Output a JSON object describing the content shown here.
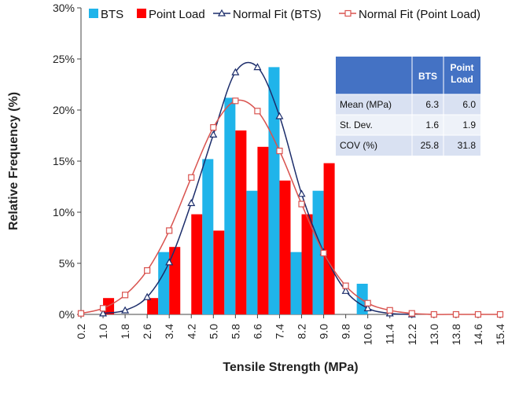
{
  "chart_data": {
    "type": "bar",
    "title": "",
    "xlabel": "Tensile Strength (MPa)",
    "ylabel": "Relative Frequency (%)",
    "ylim": [
      0,
      30
    ],
    "y_ticks": [
      "0%",
      "5%",
      "10%",
      "15%",
      "20%",
      "25%",
      "30%"
    ],
    "categories": [
      "0.2",
      "1.0",
      "1.8",
      "2.6",
      "3.4",
      "4.2",
      "5.0",
      "5.8",
      "6.6",
      "7.4",
      "8.2",
      "9.0",
      "9.8",
      "10.6",
      "11.4",
      "12.2",
      "13.0",
      "13.8",
      "14.6",
      "15.4"
    ],
    "grid": false,
    "legend_position": "top",
    "series": [
      {
        "name": "BTS",
        "type": "bar",
        "color": "#1fb4ea",
        "values": [
          0,
          0,
          0,
          0,
          6.1,
          0,
          15.2,
          21.2,
          12.1,
          24.2,
          6.1,
          12.1,
          0,
          3.0,
          0,
          0,
          0,
          0,
          0,
          0
        ]
      },
      {
        "name": "Point Load",
        "type": "bar",
        "color": "#ff0000",
        "values": [
          0,
          1.6,
          0,
          1.6,
          6.6,
          9.8,
          8.2,
          18.0,
          16.4,
          13.1,
          9.8,
          14.8,
          0,
          0,
          0,
          0,
          0,
          0,
          0,
          0
        ]
      },
      {
        "name": "Normal Fit (BTS)",
        "type": "line",
        "color": "#1c2d6b",
        "marker": "triangle",
        "x": [
          1.0,
          1.8,
          2.6,
          3.4,
          4.2,
          5.0,
          5.8,
          6.6,
          7.4,
          8.2,
          9.0,
          9.8,
          10.6,
          11.4,
          12.2
        ],
        "y": [
          0.1,
          0.4,
          1.7,
          5.1,
          10.9,
          17.6,
          23.7,
          24.2,
          19.4,
          11.8,
          6.1,
          2.3,
          0.6,
          0.1,
          0.0
        ]
      },
      {
        "name": "Normal Fit (Point Load)",
        "type": "line",
        "color": "#d9534f",
        "marker": "square",
        "x": [
          0.2,
          1.0,
          1.8,
          2.6,
          3.4,
          4.2,
          5.0,
          5.8,
          6.6,
          7.4,
          8.2,
          9.0,
          9.8,
          10.6,
          11.4,
          12.2,
          13.0,
          13.8,
          14.6,
          15.4
        ],
        "y": [
          0.1,
          0.6,
          1.9,
          4.3,
          8.2,
          13.4,
          18.3,
          20.9,
          19.9,
          16.0,
          10.8,
          6.0,
          2.8,
          1.1,
          0.4,
          0.1,
          0.0,
          0.0,
          0.0,
          0.0
        ]
      }
    ],
    "stats_table": {
      "headers": [
        "",
        "BTS",
        "Point Load"
      ],
      "rows": [
        [
          "Mean (MPa)",
          "6.3",
          "6.0"
        ],
        [
          "St. Dev.",
          "1.6",
          "1.9"
        ],
        [
          "COV (%)",
          "25.8",
          "31.8"
        ]
      ],
      "header_color": "#4472c4",
      "row_colors": [
        "#d9e1f2",
        "#eef2f9"
      ]
    }
  }
}
